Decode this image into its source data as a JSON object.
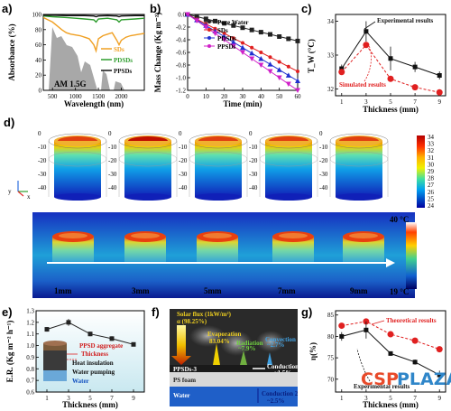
{
  "panels": {
    "a": "a)",
    "b": "b)",
    "c": "c)",
    "d": "d)",
    "e": "e)",
    "f": "f)",
    "g": "g)"
  },
  "watermark": {
    "part1": "CSP",
    "part2": "PLAZA",
    "color1": "#e84a2a",
    "color2": "#2f86c9"
  },
  "chart_data": [
    {
      "id": "a",
      "type": "line",
      "xlabel": "Wavelength (nm)",
      "ylabel": "Absorbance (%)",
      "xlim": [
        300,
        2500
      ],
      "ylim": [
        0,
        100
      ],
      "xticks": [
        "500",
        "1000",
        "1500",
        "2000"
      ],
      "yticks": [
        "0",
        "20",
        "40",
        "60",
        "80",
        "100"
      ],
      "annotation": "AM 1.5G",
      "series": [
        {
          "name": "SDs",
          "color": "#f0a023",
          "x": [
            300,
            400,
            500,
            600,
            700,
            800,
            900,
            1000,
            1100,
            1200,
            1300,
            1400,
            1450,
            1500,
            1600,
            1700,
            1800,
            1900,
            1950,
            2000,
            2100,
            2200,
            2300,
            2400,
            2500
          ],
          "y": [
            96,
            93,
            90,
            85,
            80,
            76,
            74,
            73,
            72,
            70,
            68,
            60,
            52,
            68,
            72,
            74,
            76,
            66,
            60,
            66,
            70,
            72,
            73,
            74,
            75
          ]
        },
        {
          "name": "PDSDs",
          "color": "#2e9d2e",
          "x": [
            300,
            500,
            800,
            1000,
            1200,
            1400,
            1450,
            1500,
            1700,
            1900,
            1950,
            2000,
            2300,
            2500
          ],
          "y": [
            98,
            97,
            96,
            95,
            94,
            93,
            90,
            94,
            95,
            93,
            90,
            93,
            94,
            95
          ]
        },
        {
          "name": "PPSDs",
          "color": "#111111",
          "x": [
            300,
            500,
            800,
            1000,
            1200,
            1400,
            1450,
            1500,
            1700,
            1900,
            1950,
            2000,
            2300,
            2500
          ],
          "y": [
            99,
            99,
            98.5,
            98.5,
            98.5,
            98,
            97,
            98,
            98.5,
            98,
            97,
            98,
            98.5,
            98.5
          ]
        }
      ]
    },
    {
      "id": "b",
      "type": "line",
      "xlabel": "Time (min)",
      "ylabel": "Mass Change (Kg m⁻²)",
      "xlim": [
        0,
        60
      ],
      "ylim": [
        -1.2,
        0
      ],
      "xticks": [
        "0",
        "10",
        "20",
        "30",
        "40",
        "50",
        "60"
      ],
      "yticks": [
        "0.0",
        "-0.2",
        "-0.4",
        "-0.6",
        "-0.8",
        "-1.0",
        "-1.2"
      ],
      "series": [
        {
          "name": "Pure Water",
          "color": "#222222",
          "x": [
            0,
            5,
            10,
            15,
            20,
            25,
            30,
            35,
            40,
            45,
            50,
            55,
            60
          ],
          "y": [
            0,
            -0.035,
            -0.07,
            -0.105,
            -0.14,
            -0.175,
            -0.21,
            -0.245,
            -0.28,
            -0.315,
            -0.35,
            -0.385,
            -0.42
          ]
        },
        {
          "name": "SDs",
          "color": "#e02020",
          "x": [
            0,
            5,
            10,
            15,
            20,
            25,
            30,
            35,
            40,
            45,
            50,
            55,
            60
          ],
          "y": [
            0,
            -0.075,
            -0.15,
            -0.225,
            -0.3,
            -0.375,
            -0.45,
            -0.525,
            -0.6,
            -0.675,
            -0.75,
            -0.825,
            -0.9
          ]
        },
        {
          "name": "PDSDs",
          "color": "#2030d0",
          "x": [
            0,
            5,
            10,
            15,
            20,
            25,
            30,
            35,
            40,
            45,
            50,
            55,
            60
          ],
          "y": [
            0,
            -0.088,
            -0.175,
            -0.263,
            -0.35,
            -0.438,
            -0.525,
            -0.613,
            -0.7,
            -0.788,
            -0.875,
            -0.963,
            -1.05
          ]
        },
        {
          "name": "PPSDs",
          "color": "#d020c8",
          "x": [
            0,
            5,
            10,
            15,
            20,
            25,
            30,
            35,
            40,
            45,
            50,
            55,
            60
          ],
          "y": [
            0,
            -0.1,
            -0.2,
            -0.3,
            -0.4,
            -0.5,
            -0.6,
            -0.7,
            -0.8,
            -0.9,
            -1.0,
            -1.1,
            -1.2
          ]
        }
      ]
    },
    {
      "id": "c",
      "type": "line",
      "xlabel": "Thickness (mm)",
      "ylabel": "T_W (°C)",
      "xlim": [
        0.5,
        9.5
      ],
      "ylim": [
        31.8,
        34.2
      ],
      "xticks": [
        "1",
        "3",
        "5",
        "7",
        "9"
      ],
      "yticks": [
        "32",
        "33",
        "34"
      ],
      "series": [
        {
          "name": "Experimental results",
          "color": "#111111",
          "x": [
            1,
            3,
            5,
            7,
            9
          ],
          "y": [
            32.6,
            33.7,
            32.9,
            32.65,
            32.4
          ],
          "err": [
            0.12,
            0.3,
            0.35,
            0.15,
            0.12
          ]
        },
        {
          "name": "Simulated results",
          "color": "#e02020",
          "x": [
            1,
            3,
            5,
            7,
            9
          ],
          "y": [
            32.5,
            33.3,
            32.3,
            32.05,
            31.9
          ]
        }
      ]
    },
    {
      "id": "e",
      "type": "line",
      "xlabel": "Thickness (mm)",
      "ylabel": "E.R. (Kg m⁻² h⁻¹)",
      "xlim": [
        0,
        10
      ],
      "ylim": [
        0.6,
        1.3
      ],
      "xticks": [
        "1",
        "3",
        "5",
        "7",
        "9"
      ],
      "yticks": [
        "0.6",
        "0.7",
        "0.8",
        "0.9",
        "1.0",
        "1.1",
        "1.2",
        "1.3"
      ],
      "series": [
        {
          "name": "",
          "color": "#222222",
          "x": [
            1,
            3,
            5,
            7,
            9
          ],
          "y": [
            1.14,
            1.2,
            1.1,
            1.06,
            1.01
          ],
          "err": [
            0.02,
            0.03,
            0.02,
            0.02,
            0.015
          ]
        }
      ],
      "annotations": [
        "PPSD aggregate",
        "Thickness",
        "Heat insulation",
        "Water pumping",
        "Water"
      ]
    },
    {
      "id": "g",
      "type": "line",
      "xlabel": "Thickness (mm)",
      "ylabel": "η(%)",
      "xlim": [
        0.5,
        9.5
      ],
      "ylim": [
        67,
        86
      ],
      "xticks": [
        "1",
        "3",
        "5",
        "7",
        "9"
      ],
      "yticks": [
        "70",
        "75",
        "80",
        "85"
      ],
      "series": [
        {
          "name": "Theoretical results",
          "color": "#e02020",
          "x": [
            1,
            3,
            5,
            7,
            9
          ],
          "y": [
            82.5,
            83.5,
            80.5,
            79,
            77
          ]
        },
        {
          "name": "Experimental results",
          "color": "#111111",
          "x": [
            1,
            3,
            5,
            7,
            9
          ],
          "y": [
            80,
            81.5,
            76,
            74,
            71
          ],
          "err": [
            1,
            2,
            0.5,
            0.6,
            1
          ]
        }
      ]
    }
  ],
  "panel_d": {
    "colorbar_ticks": [
      "34",
      "33",
      "32",
      "31",
      "30",
      "29",
      "28",
      "27",
      "26",
      "25",
      "24"
    ],
    "ir_max": "40 °C",
    "ir_min": "19 °C",
    "thickness_labels": [
      "1mm",
      "3mm",
      "5mm",
      "7mm",
      "9mm"
    ],
    "sim_axis_ticks": [
      "0",
      "-10",
      "-20",
      "-30",
      "-40"
    ]
  },
  "panel_f": {
    "solar_flux": "Solar flux (1kW/m²)",
    "alpha": "α (98.25%)",
    "evaporation": "Evaporation",
    "evap_pct": "83.04%",
    "radiation": "Radiation",
    "radiation_pct": "~7.9%",
    "convection": "Convection",
    "convection_pct": "~2.7%",
    "material": "PPSDs-3",
    "conduction1": "Conduction 1",
    "conduction1_pct": "~1.5%",
    "ps_foam": "PS foam",
    "water": "Water",
    "conduction2": "Conduction 2",
    "conduction2_pct": "~2.5%"
  }
}
